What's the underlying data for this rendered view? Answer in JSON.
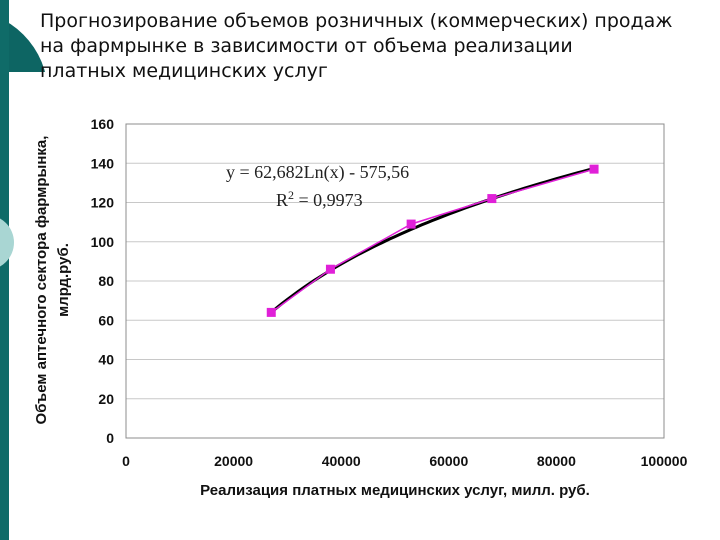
{
  "slide": {
    "title_lines": [
      "Прогнозирование объемов розничных (коммерческих) продаж",
      "на фармрынке в зависимости от объема реализации",
      "платных медицинских услуг"
    ]
  },
  "chart_data": {
    "type": "scatter",
    "title": "",
    "xlabel": "Реализация платных медицинских услуг, милл. руб.",
    "ylabel_lines": [
      "Объем аптечного сектора фармрынка,",
      "млрд.руб."
    ],
    "xlim": [
      0,
      100000
    ],
    "ylim": [
      0,
      160
    ],
    "x_ticks": [
      0,
      20000,
      40000,
      60000,
      80000,
      100000
    ],
    "y_ticks": [
      0,
      20,
      40,
      60,
      80,
      100,
      120,
      140,
      160
    ],
    "grid": "horizontal",
    "series": [
      {
        "color": "#e020d8",
        "marker": "square",
        "x": [
          27000,
          38000,
          53000,
          68000,
          87000
        ],
        "y": [
          64,
          86,
          109,
          122,
          137
        ]
      }
    ],
    "trendline": {
      "type": "logarithmic",
      "a": 62.682,
      "b": -575.56,
      "color": "#000000",
      "x_range": [
        27000,
        87000
      ]
    },
    "annotation": {
      "equation": "y = 62,682Ln(x) - 575,56",
      "r2_prefix": "R",
      "r2_sup": "2",
      "r2_value": " = 0,9973"
    },
    "colors": {
      "plot_border": "#8c8c8c",
      "grid": "#c8c8c8"
    }
  }
}
